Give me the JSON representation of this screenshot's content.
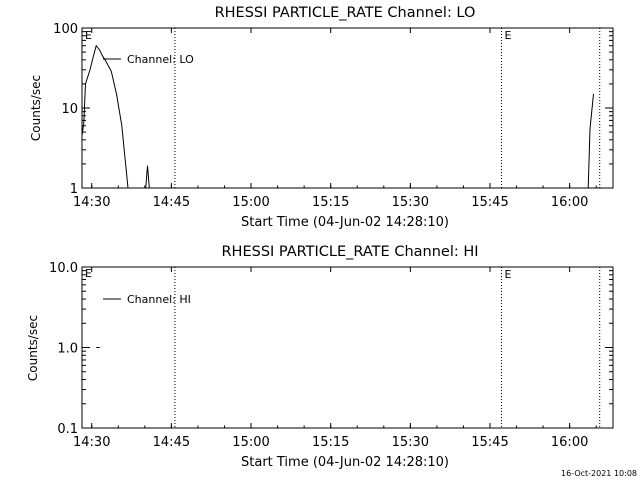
{
  "footer_timestamp": "16-Oct-2021 10:08",
  "chart_data": [
    {
      "type": "line",
      "title": "RHESSI PARTICLE_RATE Channel: LO",
      "xlabel": "Start Time (04-Jun-02 14:28:10)",
      "ylabel": "Counts/sec",
      "y_scale": "log",
      "ylim": [
        1,
        100
      ],
      "y_ticks": [
        {
          "value": 1,
          "label": "1"
        },
        {
          "value": 10,
          "label": "10"
        },
        {
          "value": 100,
          "label": "100"
        }
      ],
      "xlim": [
        "14:28:10",
        "16:08:10"
      ],
      "x_ticks": [
        "14:30",
        "14:45",
        "15:00",
        "15:15",
        "15:30",
        "15:45",
        "16:00"
      ],
      "legend": {
        "placement": "top-left",
        "entries": [
          "Channel: LO"
        ]
      },
      "event_lines": [
        {
          "time": "14:45:40",
          "label": ""
        },
        {
          "time": "15:47:10",
          "label": "E"
        },
        {
          "time": "16:05:40",
          "label": ""
        }
      ],
      "corner_label": "E",
      "series": [
        {
          "name": "Channel: LO",
          "points": [
            [
              "14:28:10",
              4.5
            ],
            [
              "14:28:30",
              6.5
            ],
            [
              "14:28:50",
              20
            ],
            [
              "14:29:40",
              30
            ],
            [
              "14:30:20",
              45
            ],
            [
              "14:30:50",
              60
            ],
            [
              "14:31:30",
              53
            ],
            [
              "14:32:00",
              45
            ],
            [
              "14:32:30",
              40
            ],
            [
              "14:33:40",
              29
            ],
            [
              "14:34:40",
              15
            ],
            [
              "14:35:40",
              6
            ],
            [
              "14:36:50",
              1
            ],
            [
              "14:38:20",
              1
            ]
          ],
          "spikes": [
            [
              [
                "14:40:10",
                1.0
              ],
              [
                "14:40:30",
                1.9
              ],
              [
                "14:40:50",
                1.0
              ]
            ],
            [
              [
                "16:03:30",
                1.0
              ],
              [
                "16:03:50",
                5.5
              ],
              [
                "16:04:30",
                15
              ]
            ]
          ]
        }
      ]
    },
    {
      "type": "line",
      "title": "RHESSI PARTICLE_RATE Channel: HI",
      "xlabel": "Start Time (04-Jun-02 14:28:10)",
      "ylabel": "Counts/sec",
      "y_scale": "log",
      "ylim": [
        0.1,
        10
      ],
      "y_ticks": [
        {
          "value": 0.1,
          "label": "0.1"
        },
        {
          "value": 1,
          "label": "1.0"
        },
        {
          "value": 10,
          "label": "10.0"
        }
      ],
      "xlim": [
        "14:28:10",
        "16:08:10"
      ],
      "x_ticks": [
        "14:30",
        "14:45",
        "15:00",
        "15:15",
        "15:30",
        "15:45",
        "16:00"
      ],
      "legend": {
        "placement": "top-left",
        "entries": [
          "Channel: HI"
        ]
      },
      "event_lines": [
        {
          "time": "14:45:40",
          "label": ""
        },
        {
          "time": "15:47:10",
          "label": "E"
        },
        {
          "time": "16:05:40",
          "label": ""
        }
      ],
      "corner_label": "E",
      "series": [
        {
          "name": "Channel: HI",
          "points": [
            [
              "14:30:50",
              1.0
            ],
            [
              "14:31:30",
              1.0
            ]
          ],
          "spikes": []
        }
      ]
    }
  ]
}
